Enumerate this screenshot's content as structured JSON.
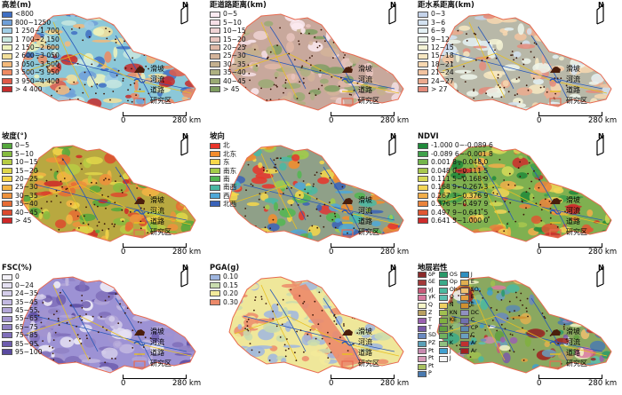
{
  "symbols": {
    "landslide": "滑坡",
    "river": "河流",
    "road": "道路",
    "study_area": "研究区"
  },
  "north_label": "N",
  "scale": {
    "zero": "0",
    "end": "280 km"
  },
  "panels": [
    {
      "id": "elevation",
      "title": "高差(m)",
      "base": "#8cc8d8",
      "classes": [
        {
          "label": "<800",
          "color": "#3f6fc3"
        },
        {
          "label": "800~1250",
          "color": "#6f9fd8"
        },
        {
          "label": "1 250~1 700",
          "color": "#9fcde6"
        },
        {
          "label": "1 700~2 150",
          "color": "#c8e8e0"
        },
        {
          "label": "2 150~2 600",
          "color": "#eef3bd"
        },
        {
          "label": "2 600~3 050",
          "color": "#f4e09a"
        },
        {
          "label": "3 050~3 500",
          "color": "#f4b97a"
        },
        {
          "label": "3 500~3 950",
          "color": "#ee8a62"
        },
        {
          "label": "3 950~4 400",
          "color": "#e05a48"
        },
        {
          "label": "> 4 400",
          "color": "#c62c2c"
        }
      ]
    },
    {
      "id": "road-distance",
      "title": "距道路距离(km)",
      "base": "#c8a89c",
      "classes": [
        {
          "label": "0~5",
          "color": "#fbeaf1"
        },
        {
          "label": "5~10",
          "color": "#f6dfe6"
        },
        {
          "label": "10~15",
          "color": "#efd3d4"
        },
        {
          "label": "15~20",
          "color": "#e9c6bf"
        },
        {
          "label": "20~25",
          "color": "#e0b9a8"
        },
        {
          "label": "25~30",
          "color": "#d3b49a"
        },
        {
          "label": "30~35",
          "color": "#c4b08e"
        },
        {
          "label": "35~40",
          "color": "#aeb081"
        },
        {
          "label": "40~45",
          "color": "#9aaa74"
        },
        {
          "label": "> 45",
          "color": "#7f9e61"
        }
      ]
    },
    {
      "id": "water-distance",
      "title": "距水系距离(km)",
      "base": "#b8b8a8",
      "classes": [
        {
          "label": "0~3",
          "color": "#c5d3ea"
        },
        {
          "label": "3~6",
          "color": "#d3e2f1"
        },
        {
          "label": "6~9",
          "color": "#e4f1f4"
        },
        {
          "label": "9~12",
          "color": "#eef6ec"
        },
        {
          "label": "12~15",
          "color": "#f4f3d6"
        },
        {
          "label": "15~18",
          "color": "#f7e7c2"
        },
        {
          "label": "18~21",
          "color": "#f7d7b0"
        },
        {
          "label": "21~24",
          "color": "#f2c3a0"
        },
        {
          "label": "24~27",
          "color": "#ecaa8e"
        },
        {
          "label": "> 27",
          "color": "#e48b7b"
        }
      ]
    },
    {
      "id": "slope",
      "title": "坡度(°)",
      "base": "#b8a840",
      "classes": [
        {
          "label": "0~5",
          "color": "#55a83c"
        },
        {
          "label": "5~10",
          "color": "#86bb3f"
        },
        {
          "label": "10~15",
          "color": "#b7cc44"
        },
        {
          "label": "15~20",
          "color": "#e0d74a"
        },
        {
          "label": "20~25",
          "color": "#f5d64a"
        },
        {
          "label": "25~30",
          "color": "#f4b544"
        },
        {
          "label": "30~35",
          "color": "#ee913c"
        },
        {
          "label": "35~40",
          "color": "#e66c34"
        },
        {
          "label": "40~45",
          "color": "#dc4a2e"
        },
        {
          "label": "> 45",
          "color": "#cf2828"
        }
      ]
    },
    {
      "id": "aspect",
      "title": "坡向",
      "base": "#8fa088",
      "classes": [
        {
          "label": "北",
          "color": "#e9342a"
        },
        {
          "label": "北东",
          "color": "#f48c2c"
        },
        {
          "label": "东",
          "color": "#f7d84a"
        },
        {
          "label": "南东",
          "color": "#a3cc49"
        },
        {
          "label": "南",
          "color": "#52b751"
        },
        {
          "label": "南西",
          "color": "#4ab8a3"
        },
        {
          "label": "西",
          "color": "#4fa8d8"
        },
        {
          "label": "北西",
          "color": "#3a62b8"
        }
      ]
    },
    {
      "id": "ndvi",
      "title": "NDVI",
      "base": "#7fb050",
      "classes": [
        {
          "label": "-1.000 0~-0.089 6",
          "color": "#1f8a3a"
        },
        {
          "label": "-0.089 6~-0.001 8",
          "color": "#3fa04a"
        },
        {
          "label": "0.001 8~0.048 0",
          "color": "#74b54c"
        },
        {
          "label": "0.048 0~0.111 5",
          "color": "#a8c84e"
        },
        {
          "label": "0.111 5~0.168 9",
          "color": "#d7da58"
        },
        {
          "label": "0.168 9~0.267 3",
          "color": "#f3d657"
        },
        {
          "label": "0.267 3~0.376 9",
          "color": "#f2ae4a"
        },
        {
          "label": "0.376 9~0.497 9",
          "color": "#ea843d"
        },
        {
          "label": "0.497 9~0.641 5",
          "color": "#e05632"
        },
        {
          "label": "0.641 5~1.000 0",
          "color": "#cf2c2c"
        }
      ]
    },
    {
      "id": "fsc",
      "title": "FSC(%)",
      "base": "#9d92d4",
      "classes": [
        {
          "label": "0",
          "color": "#f3f1f8"
        },
        {
          "label": "0~24",
          "color": "#e5e1f2"
        },
        {
          "label": "24~35",
          "color": "#d4cdea"
        },
        {
          "label": "35~45",
          "color": "#c3b9e1"
        },
        {
          "label": "45~55",
          "color": "#b3a6d8"
        },
        {
          "label": "55~65",
          "color": "#a394cf"
        },
        {
          "label": "65~75",
          "color": "#9181c4"
        },
        {
          "label": "75~85",
          "color": "#806fba"
        },
        {
          "label": "85~95",
          "color": "#6e5dae"
        },
        {
          "label": "95~100",
          "color": "#5a4aa0"
        }
      ]
    },
    {
      "id": "pga",
      "title": "PGA(g)",
      "base": "#efe79a",
      "classes": [
        {
          "label": "0.10",
          "color": "#9fb6e0"
        },
        {
          "label": "0.15",
          "color": "#c9dcae"
        },
        {
          "label": "0.20",
          "color": "#f3ea9a"
        },
        {
          "label": "0.30",
          "color": "#ec8a6a"
        }
      ]
    },
    {
      "id": "lithology",
      "title": "地层岩性",
      "base": "#8aa860",
      "geo_cols": [
        [
          {
            "label": "δP",
            "color": "#8b2a2a"
          },
          {
            "label": "δE",
            "color": "#a23a3a"
          },
          {
            "label": "γJ",
            "color": "#c85a7a"
          },
          {
            "label": "γK",
            "color": "#d87aa0"
          },
          {
            "label": "Q",
            "color": "#f5f5c8"
          },
          {
            "label": "Z",
            "color": "#b8a060"
          },
          {
            "label": "T",
            "color": "#9a60b0"
          },
          {
            "label": "T",
            "color": "#7a5aa8"
          },
          {
            "label": "SD",
            "color": "#6a8ac0"
          },
          {
            "label": "PZ",
            "color": "#5aa0b8"
          },
          {
            "label": "Pt",
            "color": "#c88ab0"
          },
          {
            "label": "Pt",
            "color": "#d89ab8"
          },
          {
            "label": "Pt",
            "color": "#a8c060"
          },
          {
            "label": "P",
            "color": "#4a7ab0"
          }
        ],
        [
          {
            "label": "OS",
            "color": "#2a9a6a"
          },
          {
            "label": "Op",
            "color": "#3aaa8a"
          },
          {
            "label": "Oh",
            "color": "#4abaa0"
          },
          {
            "label": "O",
            "color": "#5ac0b0"
          },
          {
            "label": "N",
            "color": "#f0d060"
          },
          {
            "label": "KN",
            "color": "#a0c050"
          },
          {
            "label": "KE",
            "color": "#80b040"
          },
          {
            "label": "K",
            "color": "#60a040"
          },
          {
            "label": "K",
            "color": "#70b060"
          },
          {
            "label": "K",
            "color": "#90c080"
          },
          {
            "label": "J",
            "color": "#40a0d0"
          },
          {
            "label": "J",
            "color": "#f4f4f4"
          }
        ],
        [
          {
            "label": "J",
            "color": "#3090c0"
          },
          {
            "label": "E",
            "color": "#e0b050"
          },
          {
            "label": "EO",
            "color": "#f0c070"
          },
          {
            "label": "E",
            "color": "#e8a040"
          },
          {
            "label": "E",
            "color": "#d09030"
          },
          {
            "label": "DC",
            "color": "#9090c0"
          },
          {
            "label": "C",
            "color": "#7070b0"
          },
          {
            "label": "CP",
            "color": "#5a8ab0"
          },
          {
            "label": "C",
            "color": "#6aa0c0"
          },
          {
            "label": "Ar",
            "color": "#c03030"
          },
          {
            "label": "Ar",
            "color": "#a02020"
          }
        ]
      ]
    }
  ]
}
